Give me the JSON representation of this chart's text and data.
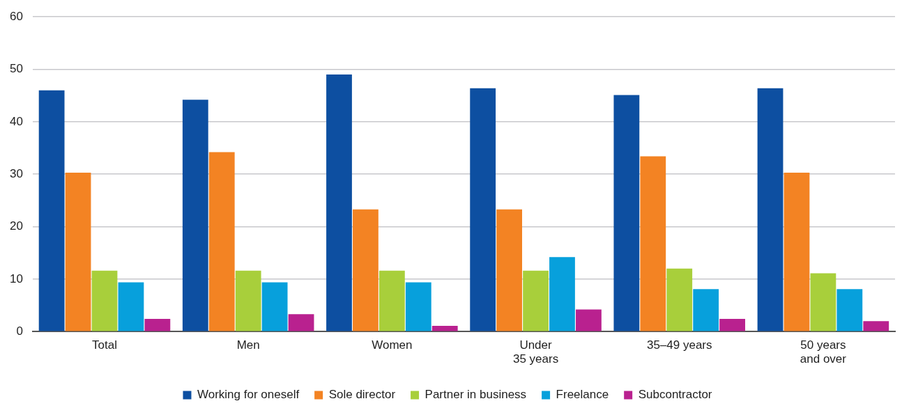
{
  "chart_data": {
    "type": "bar",
    "categories": [
      "Total",
      "Men",
      "Women",
      "Under\n35 years",
      "35–49 years",
      "50 years\nand over"
    ],
    "series": [
      {
        "name": "Working for oneself",
        "color": "#0d4fa1",
        "values": [
          46.0,
          44.2,
          49.0,
          46.4,
          45.1,
          46.4
        ]
      },
      {
        "name": "Sole director",
        "color": "#f38323",
        "values": [
          30.3,
          34.2,
          23.3,
          23.3,
          33.4,
          30.3
        ]
      },
      {
        "name": "Partner in business",
        "color": "#a8cf3b",
        "values": [
          11.6,
          11.6,
          11.6,
          11.6,
          12.0,
          11.1
        ]
      },
      {
        "name": "Freelance",
        "color": "#07a0dc",
        "values": [
          9.4,
          9.4,
          9.4,
          14.2,
          8.1,
          8.1
        ]
      },
      {
        "name": "Subcontractor",
        "color": "#b9218f",
        "values": [
          2.4,
          3.3,
          1.1,
          4.2,
          2.4,
          2.0
        ]
      }
    ],
    "ylim": [
      0,
      60
    ],
    "yticks": [
      0,
      10,
      20,
      30,
      40,
      50,
      60
    ],
    "grid": "y",
    "legend": "bottom"
  }
}
